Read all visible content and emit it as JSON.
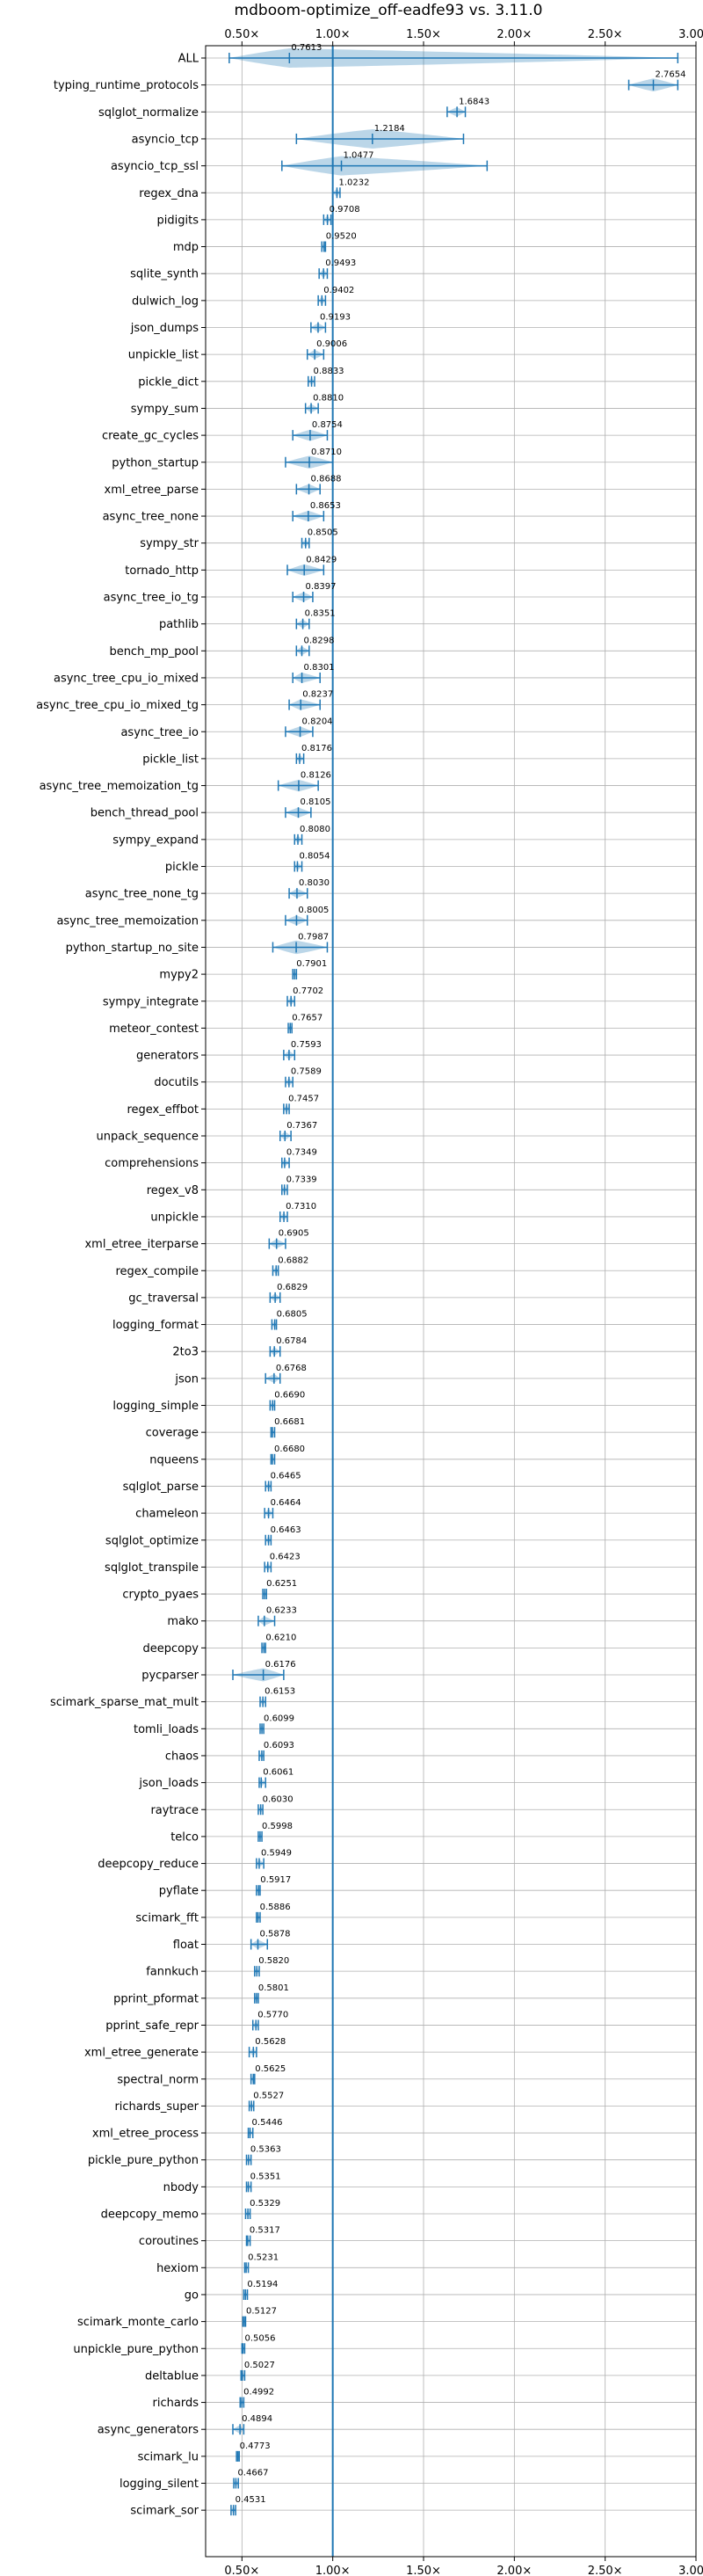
{
  "chart_data": {
    "type": "violin",
    "title": "mdboom-optimize_off-eadfe93 vs. 3.11.0",
    "xlim": [
      0.3,
      3.0
    ],
    "x_ticks": [
      0.5,
      1.0,
      1.5,
      2.0,
      2.5,
      3.0
    ],
    "x_tick_labels": [
      "0.50×",
      "1.00×",
      "1.50×",
      "2.00×",
      "2.50×",
      "3.00×"
    ],
    "reference_line": 1.0,
    "grid": true,
    "color": "#1f77b4",
    "categories": [
      "ALL",
      "typing_runtime_protocols",
      "sqlglot_normalize",
      "asyncio_tcp",
      "asyncio_tcp_ssl",
      "regex_dna",
      "pidigits",
      "mdp",
      "sqlite_synth",
      "dulwich_log",
      "json_dumps",
      "unpickle_list",
      "pickle_dict",
      "sympy_sum",
      "create_gc_cycles",
      "python_startup",
      "xml_etree_parse",
      "async_tree_none",
      "sympy_str",
      "tornado_http",
      "async_tree_io_tg",
      "pathlib",
      "bench_mp_pool",
      "async_tree_cpu_io_mixed",
      "async_tree_cpu_io_mixed_tg",
      "async_tree_io",
      "pickle_list",
      "async_tree_memoization_tg",
      "bench_thread_pool",
      "sympy_expand",
      "pickle",
      "async_tree_none_tg",
      "async_tree_memoization",
      "python_startup_no_site",
      "mypy2",
      "sympy_integrate",
      "meteor_contest",
      "generators",
      "docutils",
      "regex_effbot",
      "unpack_sequence",
      "comprehensions",
      "regex_v8",
      "unpickle",
      "xml_etree_iterparse",
      "regex_compile",
      "gc_traversal",
      "logging_format",
      "2to3",
      "json",
      "logging_simple",
      "coverage",
      "nqueens",
      "sqlglot_parse",
      "chameleon",
      "sqlglot_optimize",
      "sqlglot_transpile",
      "crypto_pyaes",
      "mako",
      "deepcopy",
      "pycparser",
      "scimark_sparse_mat_mult",
      "tomli_loads",
      "chaos",
      "json_loads",
      "raytrace",
      "telco",
      "deepcopy_reduce",
      "pyflate",
      "scimark_fft",
      "float",
      "fannkuch",
      "pprint_pformat",
      "pprint_safe_repr",
      "xml_etree_generate",
      "spectral_norm",
      "richards_super",
      "xml_etree_process",
      "pickle_pure_python",
      "nbody",
      "deepcopy_memo",
      "coroutines",
      "hexiom",
      "go",
      "scimark_monte_carlo",
      "unpickle_pure_python",
      "deltablue",
      "richards",
      "async_generators",
      "scimark_lu",
      "logging_silent",
      "scimark_sor"
    ],
    "values": [
      0.7613,
      2.7654,
      1.6843,
      1.2184,
      1.0477,
      1.0232,
      0.9708,
      0.952,
      0.9493,
      0.9402,
      0.9193,
      0.9006,
      0.8833,
      0.881,
      0.8754,
      0.871,
      0.8688,
      0.8653,
      0.8505,
      0.8429,
      0.8397,
      0.8351,
      0.8298,
      0.8301,
      0.8237,
      0.8204,
      0.8176,
      0.8126,
      0.8105,
      0.808,
      0.8054,
      0.803,
      0.8005,
      0.7987,
      0.7901,
      0.7702,
      0.7657,
      0.7593,
      0.7589,
      0.7457,
      0.7367,
      0.7349,
      0.7339,
      0.731,
      0.6905,
      0.6882,
      0.6829,
      0.6805,
      0.6784,
      0.6768,
      0.669,
      0.6681,
      0.668,
      0.6465,
      0.6464,
      0.6463,
      0.6423,
      0.6251,
      0.6233,
      0.621,
      0.6176,
      0.6153,
      0.6099,
      0.6093,
      0.6061,
      0.603,
      0.5998,
      0.5949,
      0.5917,
      0.5886,
      0.5878,
      0.582,
      0.5801,
      0.577,
      0.5628,
      0.5625,
      0.5527,
      0.5446,
      0.5363,
      0.5351,
      0.5329,
      0.5317,
      0.5231,
      0.5194,
      0.5127,
      0.5056,
      0.5027,
      0.4992,
      0.4894,
      0.4773,
      0.4667,
      0.4531
    ],
    "value_labels": [
      "0.7613",
      "2.7654",
      "1.6843",
      "1.2184",
      "1.0477",
      "1.0232",
      "0.9708",
      "0.9520",
      "0.9493",
      "0.9402",
      "0.9193",
      "0.9006",
      "0.8833",
      "0.8810",
      "0.8754",
      "0.8710",
      "0.8688",
      "0.8653",
      "0.8505",
      "0.8429",
      "0.8397",
      "0.8351",
      "0.8298",
      "0.8301",
      "0.8237",
      "0.8204",
      "0.8176",
      "0.8126",
      "0.8105",
      "0.8080",
      "0.8054",
      "0.8030",
      "0.8005",
      "0.7987",
      "0.7901",
      "0.7702",
      "0.7657",
      "0.7593",
      "0.7589",
      "0.7457",
      "0.7367",
      "0.7349",
      "0.7339",
      "0.7310",
      "0.6905",
      "0.6882",
      "0.6829",
      "0.6805",
      "0.6784",
      "0.6768",
      "0.6690",
      "0.6681",
      "0.6680",
      "0.6465",
      "0.6464",
      "0.6463",
      "0.6423",
      "0.6251",
      "0.6233",
      "0.6210",
      "0.6176",
      "0.6153",
      "0.6099",
      "0.6093",
      "0.6061",
      "0.6030",
      "0.5998",
      "0.5949",
      "0.5917",
      "0.5886",
      "0.5878",
      "0.5820",
      "0.5801",
      "0.5770",
      "0.5628",
      "0.5625",
      "0.5527",
      "0.5446",
      "0.5363",
      "0.5351",
      "0.5329",
      "0.5317",
      "0.5231",
      "0.5194",
      "0.5127",
      "0.5056",
      "0.5027",
      "0.4992",
      "0.4894",
      "0.4773",
      "0.4667",
      "0.4531"
    ],
    "min": [
      0.43,
      2.63,
      1.63,
      0.8,
      0.72,
      1.0,
      0.95,
      0.94,
      0.925,
      0.92,
      0.88,
      0.86,
      0.865,
      0.85,
      0.78,
      0.74,
      0.8,
      0.78,
      0.83,
      0.75,
      0.78,
      0.8,
      0.8,
      0.78,
      0.76,
      0.74,
      0.8,
      0.7,
      0.74,
      0.79,
      0.79,
      0.76,
      0.74,
      0.67,
      0.78,
      0.75,
      0.755,
      0.73,
      0.74,
      0.73,
      0.71,
      0.72,
      0.72,
      0.71,
      0.65,
      0.67,
      0.655,
      0.665,
      0.655,
      0.63,
      0.655,
      0.66,
      0.66,
      0.63,
      0.625,
      0.63,
      0.625,
      0.615,
      0.59,
      0.61,
      0.45,
      0.6,
      0.6,
      0.595,
      0.595,
      0.59,
      0.59,
      0.58,
      0.58,
      0.58,
      0.55,
      0.57,
      0.57,
      0.56,
      0.54,
      0.55,
      0.54,
      0.535,
      0.525,
      0.525,
      0.52,
      0.525,
      0.515,
      0.51,
      0.505,
      0.5,
      0.495,
      0.49,
      0.45,
      0.47,
      0.455,
      0.44
    ],
    "max": [
      2.9,
      2.9,
      1.73,
      1.72,
      1.85,
      1.04,
      0.99,
      0.96,
      0.97,
      0.96,
      0.96,
      0.95,
      0.9,
      0.92,
      0.97,
      1.0,
      0.93,
      0.95,
      0.87,
      0.95,
      0.89,
      0.87,
      0.87,
      0.93,
      0.93,
      0.89,
      0.84,
      0.92,
      0.88,
      0.83,
      0.83,
      0.86,
      0.86,
      0.97,
      0.8,
      0.79,
      0.775,
      0.79,
      0.78,
      0.76,
      0.77,
      0.76,
      0.75,
      0.75,
      0.74,
      0.7,
      0.71,
      0.69,
      0.71,
      0.71,
      0.68,
      0.68,
      0.68,
      0.66,
      0.67,
      0.66,
      0.66,
      0.635,
      0.68,
      0.63,
      0.73,
      0.63,
      0.62,
      0.62,
      0.63,
      0.615,
      0.61,
      0.62,
      0.6,
      0.6,
      0.64,
      0.595,
      0.59,
      0.59,
      0.58,
      0.57,
      0.565,
      0.56,
      0.55,
      0.55,
      0.545,
      0.545,
      0.535,
      0.53,
      0.52,
      0.515,
      0.515,
      0.51,
      0.51,
      0.485,
      0.48,
      0.465
    ]
  }
}
